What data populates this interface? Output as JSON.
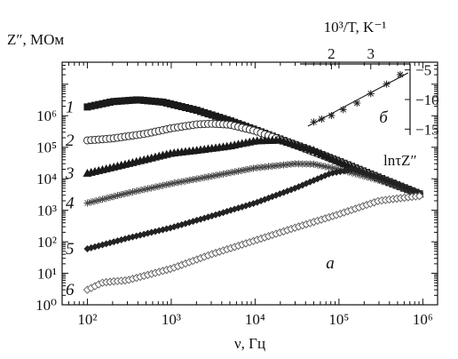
{
  "chart_data": [
    {
      "panel": "а",
      "type": "scatter",
      "ylabel": "Z″, МОм",
      "xlabel": "ν, Гц",
      "x_scale": "log",
      "y_scale": "log",
      "xlim": [
        50,
        1500000
      ],
      "ylim": [
        1,
        50000000
      ],
      "x_ticks": [
        {
          "value": 100,
          "label": "10²"
        },
        {
          "value": 1000,
          "label": "10³"
        },
        {
          "value": 10000,
          "label": "10⁴"
        },
        {
          "value": 100000,
          "label": "10⁵"
        },
        {
          "value": 1000000,
          "label": "10⁶"
        }
      ],
      "y_ticks": [
        {
          "value": 1,
          "label": "10⁰"
        },
        {
          "value": 10,
          "label": "10¹"
        },
        {
          "value": 100,
          "label": "10²"
        },
        {
          "value": 1000,
          "label": "10³"
        },
        {
          "value": 10000,
          "label": "10⁴"
        },
        {
          "value": 100000,
          "label": "10⁵"
        },
        {
          "value": 1000000,
          "label": "10⁶"
        }
      ],
      "series": [
        {
          "name": "1",
          "marker": "filled-square",
          "color": "#1a1a1a",
          "x": [
            100,
            200,
            400,
            800,
            2000,
            5000,
            10000,
            30000,
            100000,
            300000,
            1000000
          ],
          "y": [
            1900000,
            2800000,
            3200000,
            2700000,
            1500000,
            700000,
            360000,
            120000,
            36000,
            11000,
            3000
          ]
        },
        {
          "name": "2",
          "marker": "open-circle",
          "color": "#333333",
          "x": [
            100,
            200,
            500,
            1000,
            2000,
            3000,
            5000,
            10000,
            30000,
            100000,
            300000,
            1000000
          ],
          "y": [
            165000,
            190000,
            270000,
            400000,
            530000,
            560000,
            520000,
            330000,
            120000,
            35000,
            10500,
            3000
          ]
        },
        {
          "name": "3",
          "marker": "filled-triangle",
          "color": "#1a1a1a",
          "x": [
            100,
            300,
            1000,
            2000,
            5000,
            10000,
            20000,
            50000,
            100000,
            300000,
            1000000
          ],
          "y": [
            15000,
            30000,
            65000,
            80000,
            110000,
            160000,
            170000,
            80000,
            35000,
            10500,
            3000
          ]
        },
        {
          "name": "4",
          "marker": "star",
          "color": "#444444",
          "x": [
            100,
            300,
            1000,
            3000,
            10000,
            30000,
            50000,
            100000,
            300000,
            1000000
          ],
          "y": [
            1700,
            3500,
            7000,
            12000,
            22000,
            30000,
            29000,
            20000,
            9000,
            3000
          ]
        },
        {
          "name": "5",
          "marker": "filled-diamond",
          "color": "#222222",
          "x": [
            100,
            300,
            1000,
            3000,
            10000,
            30000,
            80000,
            150000,
            300000,
            1000000
          ],
          "y": [
            60,
            130,
            280,
            650,
            1700,
            5000,
            15000,
            20000,
            11000,
            3200
          ]
        },
        {
          "name": "6",
          "marker": "open-diamond",
          "color": "#666666",
          "x": [
            100,
            150,
            200,
            300,
            1000,
            3000,
            10000,
            30000,
            100000,
            300000,
            600000,
            1000000
          ],
          "y": [
            3,
            5,
            5.5,
            6,
            14,
            40,
            110,
            280,
            750,
            2000,
            2500,
            2900
          ]
        }
      ],
      "annotations": [
        "1",
        "2",
        "3",
        "4",
        "5",
        "6"
      ]
    },
    {
      "panel": "б",
      "type": "scatter",
      "xlabel": "10³/T, K⁻¹",
      "ylabel": "lnτZ″",
      "xlim": [
        1.2,
        4.0
      ],
      "ylim": [
        -16,
        -4
      ],
      "x_ticks": [
        {
          "value": 2,
          "label": "2"
        },
        {
          "value": 3,
          "label": "3"
        }
      ],
      "y_ticks": [
        {
          "value": -5,
          "label": "−5"
        },
        {
          "value": -10,
          "label": "−10"
        },
        {
          "value": -15,
          "label": "−15"
        }
      ],
      "x": [
        1.55,
        1.75,
        2.0,
        2.3,
        2.65,
        3.0,
        3.4,
        3.75
      ],
      "y": [
        -13.8,
        -13.3,
        -12.7,
        -11.7,
        -10.6,
        -9.0,
        -7.4,
        -5.8
      ],
      "fit_line": {
        "x": [
          1.4,
          3.95
        ],
        "y": [
          -14.5,
          -5.5
        ]
      },
      "marker": "star"
    }
  ],
  "panel_labels": {
    "a": "а",
    "b": "б"
  }
}
